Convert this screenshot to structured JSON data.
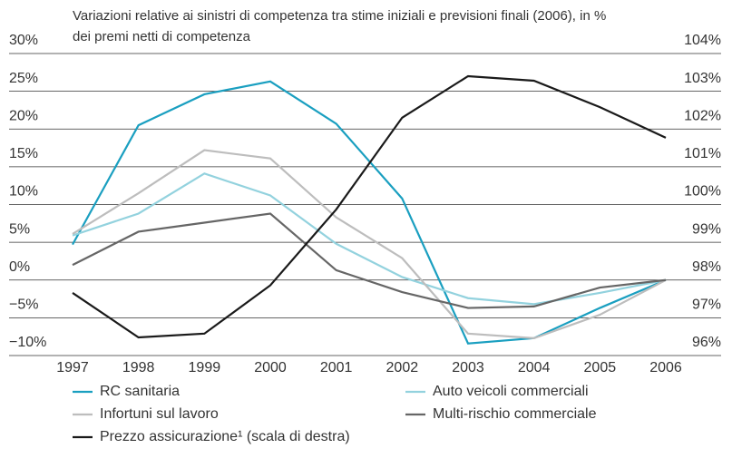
{
  "chart_data": {
    "type": "line",
    "title": "Variazioni relative ai sinistri di competenza tra stime iniziali e previsioni finali (2006), in % dei premi netti di competenza",
    "categories": [
      "1997",
      "1998",
      "1999",
      "2000",
      "2001",
      "2002",
      "2003",
      "2004",
      "2005",
      "2006"
    ],
    "series": [
      {
        "name": "RC sanitaria",
        "color": "#1a9fc0",
        "values": [
          4.7,
          20.5,
          24.6,
          26.3,
          20.7,
          10.8,
          -8.4,
          -7.7,
          -3.7,
          0
        ]
      },
      {
        "name": "Auto veicoli commerciali",
        "color": "#93d2de",
        "values": [
          5.9,
          8.8,
          14.1,
          11.2,
          4.8,
          0.4,
          -2.4,
          -3.2,
          -1.7,
          0
        ]
      },
      {
        "name": "Infortuni sul lavoro",
        "color": "#bdbdbd",
        "values": [
          6.1,
          11.5,
          17.2,
          16.1,
          8.3,
          2.9,
          -7.1,
          -7.7,
          -4.6,
          0
        ]
      },
      {
        "name": "Multi-rischio commerciale",
        "color": "#666666",
        "values": [
          2.0,
          6.4,
          7.6,
          8.8,
          1.3,
          -1.6,
          -3.7,
          -3.5,
          -1.0,
          0
        ]
      },
      {
        "name": "Prezzo assicurazione¹ (scala di destra)",
        "color": "#1a1a1a",
        "axis": "y2",
        "values": [
          97.66,
          96.48,
          96.58,
          97.86,
          99.87,
          102.3,
          103.4,
          103.28,
          102.58,
          101.77
        ]
      }
    ],
    "ylim": [
      -10,
      30
    ],
    "yticks": [
      {
        "value": 30,
        "label": "30%"
      },
      {
        "value": 25,
        "label": "25%"
      },
      {
        "value": 20,
        "label": "20%"
      },
      {
        "value": 15,
        "label": "15%"
      },
      {
        "value": 10,
        "label": "10%"
      },
      {
        "value": 5,
        "label": "5%"
      },
      {
        "value": 0,
        "label": "0%"
      },
      {
        "value": -5,
        "label": "−5%"
      },
      {
        "value": -10,
        "label": "−10%"
      }
    ],
    "y2lim": [
      96,
      104
    ],
    "y2ticks": [
      {
        "value": 104,
        "label": "104%"
      },
      {
        "value": 103,
        "label": "103%"
      },
      {
        "value": 102,
        "label": "102%"
      },
      {
        "value": 101,
        "label": "101%"
      },
      {
        "value": 100,
        "label": "100%"
      },
      {
        "value": 99,
        "label": "99%"
      },
      {
        "value": 98,
        "label": "98%"
      },
      {
        "value": 97,
        "label": "97%"
      },
      {
        "value": 96,
        "label": "96%"
      }
    ],
    "grid": true
  }
}
